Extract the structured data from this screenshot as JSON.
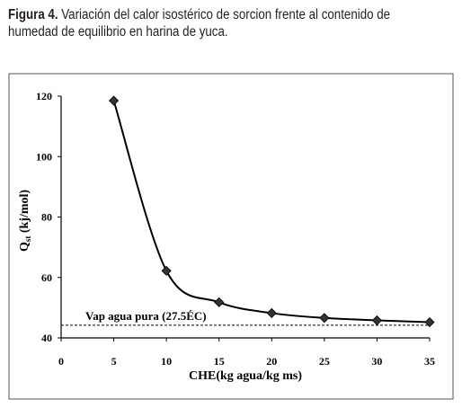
{
  "caption": {
    "label": "Figura 4.",
    "line1": "Variación del calor isostérico de sorcion frente al contenido de",
    "line2": "humedad de equilibrio en harina de yuca."
  },
  "chart_data": {
    "type": "line",
    "title": "",
    "xlabel": "CHE(kg agua/kg ms)",
    "ylabel": {
      "main": "Q",
      "sub": "st",
      "rest": " (kj/mol)"
    },
    "xlim": [
      0,
      35
    ],
    "ylim": [
      40,
      120
    ],
    "xticks": [
      0,
      5,
      10,
      15,
      20,
      25,
      30,
      35
    ],
    "yticks": [
      40,
      60,
      80,
      100,
      120
    ],
    "grid": false,
    "legend": "none",
    "series": [
      {
        "marker": "diamond",
        "color": "#000000",
        "x": [
          5,
          10,
          15,
          20,
          25,
          30,
          35
        ],
        "y": [
          118.5,
          62.2,
          51.8,
          48.2,
          46.6,
          45.8,
          45.2
        ]
      }
    ],
    "reference_line": {
      "label": "Vap agua pura (27.5ÉC)",
      "y": 44.2,
      "style": "dashed"
    }
  },
  "colors": {
    "ink": "#000000",
    "caption": "#231f20",
    "frame": "#555555"
  }
}
